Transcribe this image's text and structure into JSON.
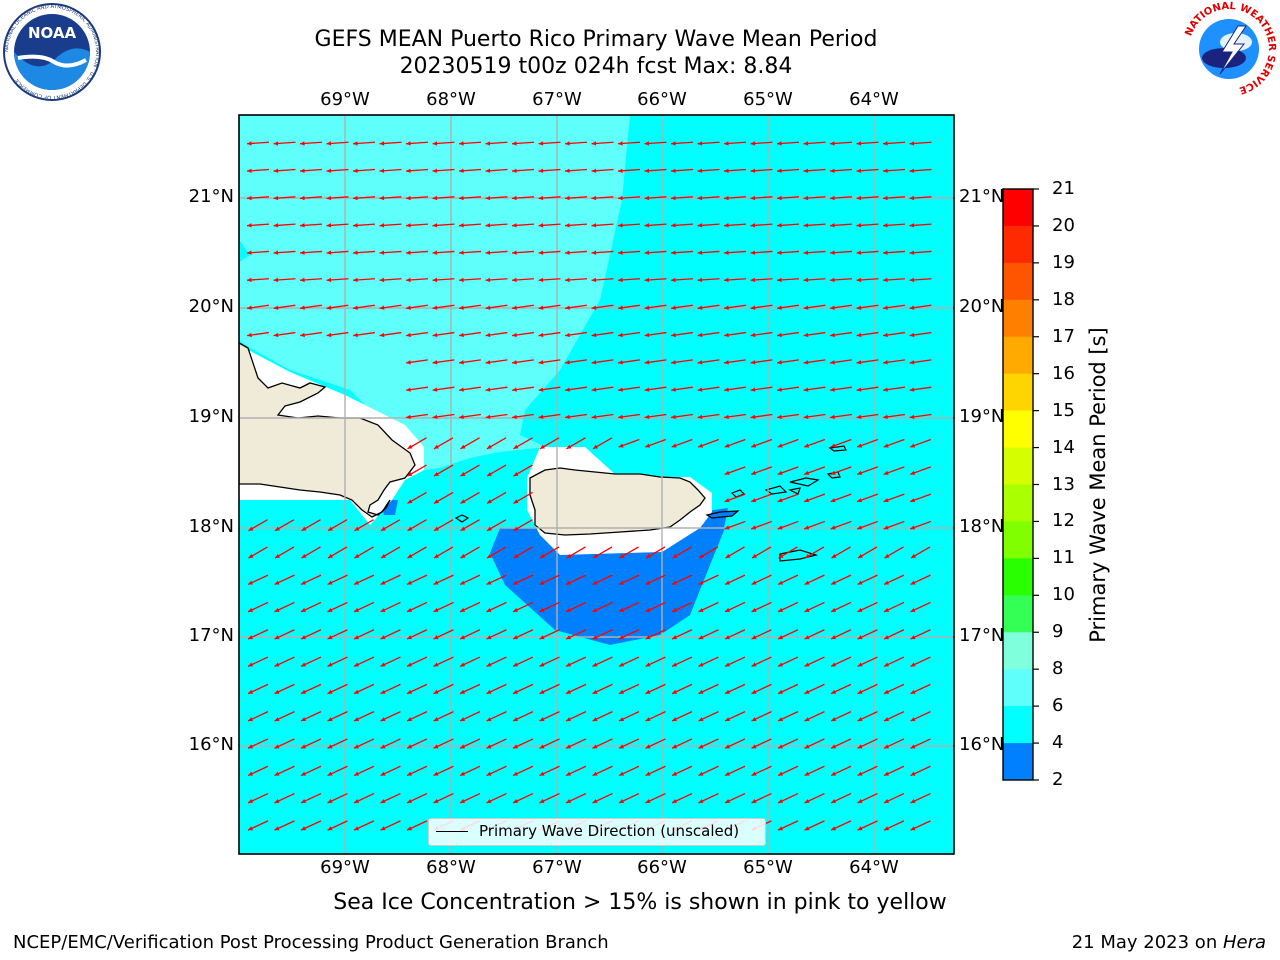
{
  "title": {
    "line1": "GEFS MEAN Puerto Rico Primary Wave Mean Period",
    "line2": "20230519 t00z 024h fcst   Max: 8.84"
  },
  "logos": {
    "noaa_text": "NOAA",
    "noaa_ring": "NATIONAL OCEANIC AND ATMOSPHERIC ADMINISTRATION · U.S. DEPARTMENT OF COMMERCE",
    "nws_ring": "NATIONAL WEATHER SERVICE"
  },
  "map": {
    "lon_ticks": [
      "69°W",
      "68°W",
      "67°W",
      "66°W",
      "65°W",
      "64°W"
    ],
    "lat_ticks": [
      "21°N",
      "20°N",
      "19°N",
      "18°N",
      "17°N",
      "16°N"
    ],
    "legend_label": "Primary Wave Direction (unscaled)",
    "arrow_color": "#ff0000",
    "land_color": "#efebd8",
    "fill_colors": {
      "light_cyan_8_9": "#5ffffb",
      "cyan_6_8": "#00ffff",
      "blue_4_6": "#0080ff",
      "land_mask_white": "#ffffff"
    }
  },
  "colorbar": {
    "title": "Primary Wave Mean Period [s]",
    "ticks": [
      "21",
      "20",
      "19",
      "18",
      "17",
      "16",
      "15",
      "14",
      "13",
      "12",
      "11",
      "10",
      "9",
      "8",
      "6",
      "4",
      "2"
    ],
    "colors": [
      "#ff0000",
      "#ff2a00",
      "#ff5500",
      "#ff8000",
      "#ffaa00",
      "#ffd500",
      "#ffff00",
      "#d5ff00",
      "#aaff00",
      "#80ff00",
      "#2aff00",
      "#33ff55",
      "#80ffdd",
      "#5ffffb",
      "#00ffff",
      "#0080ff",
      "#0000ff"
    ]
  },
  "footnote": "Sea Ice Concentration > 15% is shown in pink to yellow",
  "footer": {
    "left": "NCEP/EMC/Verification Post Processing Product Generation Branch",
    "right_prefix": "21 May 2023 on ",
    "right_italic": "Hera"
  }
}
